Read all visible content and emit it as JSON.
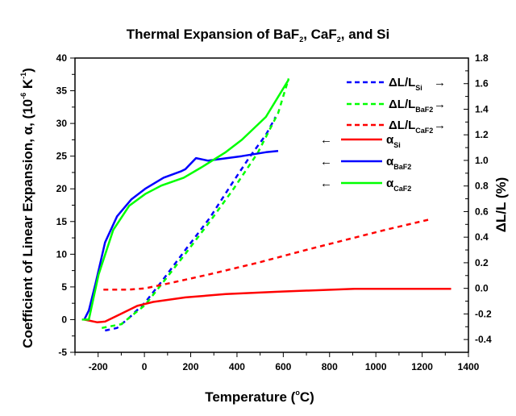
{
  "chart_data": {
    "type": "line",
    "title": {
      "main": "Thermal Expansion of BaF",
      "sub1": "2",
      "mid": ", CaF",
      "sub2": "2",
      "end": ", and Si"
    },
    "xlabel": {
      "main": "Temperature (",
      "sup": "o",
      "end": "C)"
    },
    "ylabel_left": {
      "main": "Coefficient of Linear Expansion, α, (10",
      "sup1": "-6",
      "mid": " K",
      "sup2": "-1",
      "end": ")"
    },
    "ylabel_right": "ΔL/L (%)",
    "xlim": [
      -300,
      1400
    ],
    "ylim_left": [
      -5,
      40
    ],
    "ylim_right": [
      -0.5,
      1.8
    ],
    "x_ticks": [
      -200,
      0,
      200,
      400,
      600,
      800,
      1000,
      1200,
      1400
    ],
    "y_left_ticks": [
      -5,
      0,
      5,
      10,
      15,
      20,
      25,
      30,
      35,
      40
    ],
    "y_right_ticks": [
      -0.4,
      -0.2,
      0.0,
      0.2,
      0.4,
      0.6,
      0.8,
      1.0,
      1.2,
      1.4,
      1.6,
      1.8
    ],
    "y_right_tick_labels": [
      "-0.4",
      "-0.2",
      "0.0",
      "0.2",
      "0.4",
      "0.6",
      "0.8",
      "1.0",
      "1.2",
      "1.4",
      "1.6",
      "1.8"
    ],
    "grid": false,
    "legend_position": "top-right",
    "series": [
      {
        "name": "ΔL/L_Si",
        "label": "ΔL/L",
        "sub": "Si",
        "axis": "right",
        "color": "#0000ff",
        "dashed": true,
        "arrow": "→",
        "x": [
          -170,
          -118,
          -66,
          3,
          73,
          177,
          282,
          386,
          456,
          525,
          567
        ],
        "y": [
          -0.33,
          -0.31,
          -0.23,
          -0.11,
          0.05,
          0.3,
          0.55,
          0.84,
          1.03,
          1.2,
          1.34
        ]
      },
      {
        "name": "ΔL/L_BaF2",
        "label": "ΔL/L",
        "sub": "BaF2",
        "axis": "right",
        "color": "#00ff00",
        "dashed": true,
        "arrow": "→",
        "x": [
          -184,
          -100,
          3,
          73,
          177,
          282,
          386,
          490,
          578,
          623
        ],
        "y": [
          -0.31,
          -0.28,
          -0.13,
          0.03,
          0.27,
          0.52,
          0.78,
          1.06,
          1.37,
          1.64
        ]
      },
      {
        "name": "ΔL/L_CaF2",
        "label": "ΔL/L",
        "sub": "CaF2",
        "axis": "right",
        "color": "#ff0000",
        "dashed": true,
        "arrow": "→",
        "x": [
          -177,
          -66,
          3,
          108,
          282,
          490,
          699,
          873,
          1047,
          1235
        ],
        "y": [
          -0.01,
          -0.01,
          0.0,
          0.04,
          0.11,
          0.2,
          0.3,
          0.38,
          0.46,
          0.54
        ]
      },
      {
        "name": "α_Si",
        "label": "α",
        "sub": "Si",
        "axis": "left",
        "color": "#ff0000",
        "dashed": false,
        "arrow": "←",
        "x": [
          -260,
          -205,
          -170,
          -100,
          -31,
          38,
          177,
          351,
          595,
          908,
          1325
        ],
        "y": [
          0.0,
          -0.4,
          -0.3,
          0.9,
          2.1,
          2.7,
          3.4,
          3.9,
          4.3,
          4.7,
          4.7
        ]
      },
      {
        "name": "α_BaF2",
        "label": "α",
        "sub": "BaF2",
        "axis": "left",
        "color": "#0000ff",
        "dashed": false,
        "arrow": "←",
        "x": [
          -260,
          -240,
          -212,
          -170,
          -118,
          -56,
          3,
          83,
          160,
          177,
          223,
          275,
          420,
          525,
          578
        ],
        "y": [
          0.0,
          1.4,
          5.4,
          11.8,
          15.8,
          18.4,
          20.0,
          21.7,
          22.7,
          23.0,
          24.7,
          24.3,
          25.0,
          25.6,
          25.8
        ]
      },
      {
        "name": "α_CaF2",
        "label": "α",
        "sub": "CaF2",
        "axis": "left",
        "color": "#00ff00",
        "dashed": false,
        "arrow": "←",
        "x": [
          -270,
          -240,
          -198,
          -135,
          -66,
          3,
          73,
          170,
          247,
          351,
          421,
          525,
          623
        ],
        "y": [
          0.0,
          0.0,
          6.9,
          13.7,
          17.4,
          19.2,
          20.5,
          21.7,
          23.3,
          25.6,
          27.5,
          31.0,
          36.7
        ]
      }
    ]
  }
}
